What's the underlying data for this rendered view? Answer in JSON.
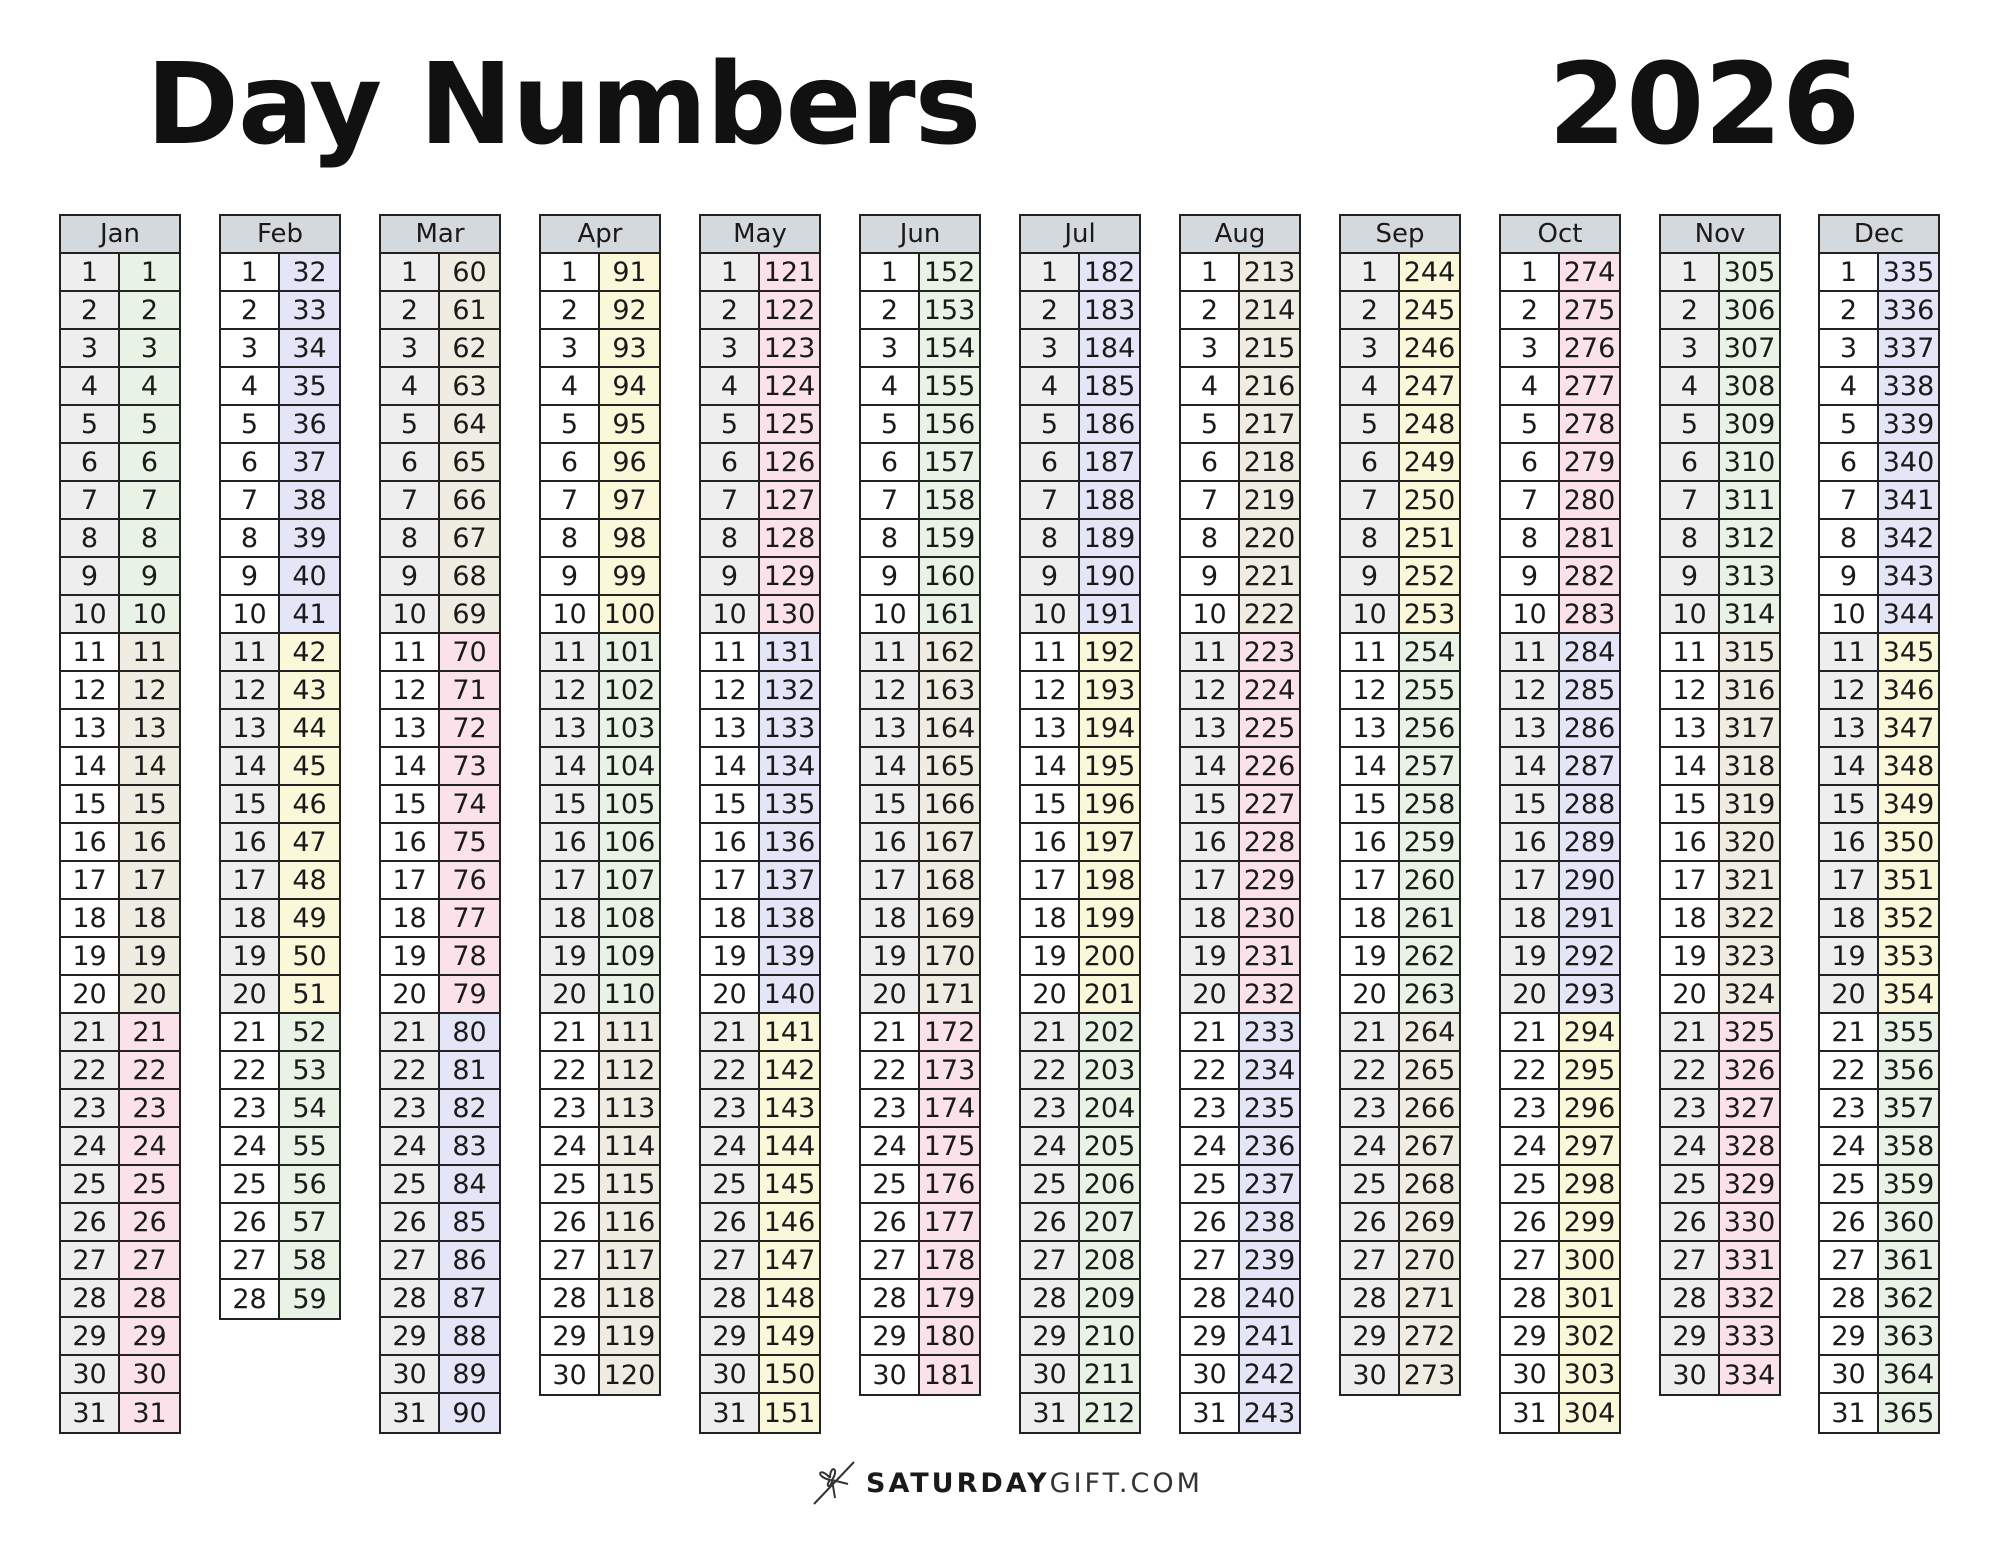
{
  "header": {
    "title": "Day Numbers",
    "year": "2026"
  },
  "colors": {
    "green": "#e8f3e5",
    "beige": "#efece2",
    "pink": "#fbe2ea",
    "blue": "#e4e6f8",
    "yellow": "#fbf8da",
    "grey": "#eeeeee",
    "white": "#ffffff",
    "header": "#d4d9de"
  },
  "months": [
    {
      "name": "Jan",
      "start": 1,
      "days": 31
    },
    {
      "name": "Feb",
      "start": 32,
      "days": 28
    },
    {
      "name": "Mar",
      "start": 60,
      "days": 31
    },
    {
      "name": "Apr",
      "start": 91,
      "days": 30
    },
    {
      "name": "May",
      "start": 121,
      "days": 31
    },
    {
      "name": "Jun",
      "start": 152,
      "days": 30
    },
    {
      "name": "Jul",
      "start": 182,
      "days": 31
    },
    {
      "name": "Aug",
      "start": 213,
      "days": 31
    },
    {
      "name": "Sep",
      "start": 244,
      "days": 30
    },
    {
      "name": "Oct",
      "start": 274,
      "days": 31
    },
    {
      "name": "Nov",
      "start": 305,
      "days": 30
    },
    {
      "name": "Dec",
      "start": 335,
      "days": 31
    }
  ],
  "footer": {
    "brand_bold": "SATURDAY",
    "brand_light": "GIFT.COM",
    "logo_icon": "bow-icon"
  }
}
